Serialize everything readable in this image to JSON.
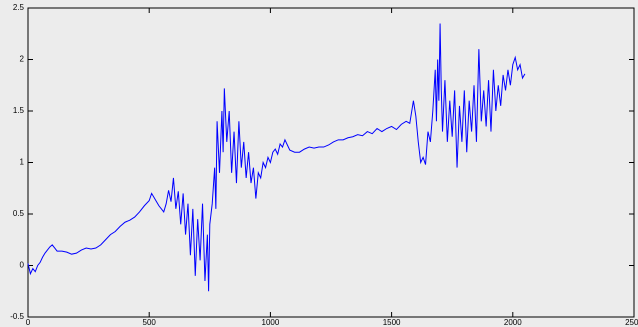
{
  "chart_data": {
    "type": "line",
    "x": [
      0,
      10,
      20,
      30,
      40,
      50,
      60,
      70,
      80,
      90,
      100,
      110,
      120,
      140,
      160,
      180,
      200,
      220,
      240,
      260,
      280,
      300,
      320,
      340,
      360,
      380,
      400,
      420,
      440,
      460,
      480,
      500,
      510,
      520,
      530,
      540,
      550,
      560,
      570,
      580,
      590,
      600,
      610,
      620,
      630,
      640,
      650,
      660,
      670,
      680,
      690,
      700,
      710,
      720,
      730,
      740,
      745,
      750,
      760,
      770,
      775,
      780,
      790,
      800,
      805,
      810,
      820,
      830,
      840,
      850,
      860,
      870,
      880,
      890,
      900,
      910,
      920,
      930,
      940,
      950,
      960,
      970,
      980,
      990,
      1000,
      1010,
      1020,
      1030,
      1040,
      1050,
      1060,
      1070,
      1080,
      1100,
      1120,
      1140,
      1160,
      1180,
      1200,
      1220,
      1240,
      1260,
      1280,
      1300,
      1320,
      1340,
      1360,
      1380,
      1400,
      1420,
      1440,
      1460,
      1480,
      1500,
      1520,
      1540,
      1560,
      1575,
      1590,
      1600,
      1610,
      1620,
      1630,
      1640,
      1650,
      1660,
      1670,
      1680,
      1685,
      1690,
      1695,
      1700,
      1705,
      1710,
      1720,
      1730,
      1740,
      1750,
      1760,
      1770,
      1780,
      1790,
      1800,
      1810,
      1820,
      1830,
      1840,
      1850,
      1860,
      1870,
      1880,
      1890,
      1900,
      1910,
      1920,
      1930,
      1940,
      1950,
      1960,
      1970,
      1980,
      1990,
      2000,
      2010,
      2020,
      2030,
      2040,
      2050
    ],
    "series": [
      {
        "color": "#0000ff",
        "values": [
          0.02,
          -0.08,
          -0.03,
          -0.06,
          0.0,
          0.03,
          0.08,
          0.12,
          0.15,
          0.18,
          0.2,
          0.17,
          0.14,
          0.14,
          0.13,
          0.11,
          0.12,
          0.15,
          0.17,
          0.16,
          0.17,
          0.2,
          0.25,
          0.3,
          0.33,
          0.38,
          0.42,
          0.44,
          0.47,
          0.52,
          0.58,
          0.63,
          0.7,
          0.66,
          0.62,
          0.58,
          0.55,
          0.52,
          0.6,
          0.73,
          0.62,
          0.85,
          0.55,
          0.72,
          0.4,
          0.7,
          0.3,
          0.6,
          0.1,
          0.55,
          -0.1,
          0.45,
          0.05,
          0.6,
          -0.15,
          0.3,
          -0.25,
          0.4,
          0.6,
          0.95,
          0.55,
          1.4,
          0.9,
          1.5,
          1.1,
          1.72,
          1.2,
          1.5,
          0.9,
          1.3,
          0.8,
          1.4,
          0.95,
          1.2,
          0.85,
          1.1,
          0.8,
          0.95,
          0.65,
          0.9,
          0.85,
          1.0,
          0.95,
          1.05,
          1.0,
          1.1,
          1.13,
          1.08,
          1.18,
          1.15,
          1.22,
          1.17,
          1.12,
          1.1,
          1.1,
          1.13,
          1.15,
          1.14,
          1.15,
          1.15,
          1.17,
          1.2,
          1.22,
          1.22,
          1.24,
          1.25,
          1.27,
          1.26,
          1.3,
          1.28,
          1.33,
          1.3,
          1.33,
          1.35,
          1.32,
          1.37,
          1.4,
          1.38,
          1.6,
          1.45,
          1.2,
          1.0,
          1.05,
          0.98,
          1.3,
          1.2,
          1.5,
          1.9,
          1.4,
          2.0,
          1.6,
          2.35,
          1.7,
          1.3,
          1.8,
          1.2,
          1.6,
          1.25,
          1.7,
          0.95,
          1.55,
          1.2,
          1.7,
          1.1,
          1.6,
          1.3,
          1.75,
          1.2,
          2.1,
          1.4,
          1.7,
          1.35,
          1.8,
          1.3,
          1.9,
          1.5,
          1.75,
          1.55,
          1.85,
          1.7,
          1.9,
          1.75,
          1.95,
          2.02,
          1.9,
          1.95,
          1.82,
          1.86
        ]
      }
    ],
    "xlim": [
      0,
      2500
    ],
    "xticks": [
      0,
      500,
      1000,
      1500,
      2000,
      2500
    ],
    "ylim": [
      -0.5,
      2.5
    ],
    "yticks": [
      -0.5,
      0,
      0.5,
      1,
      1.5,
      2,
      2.5
    ]
  }
}
